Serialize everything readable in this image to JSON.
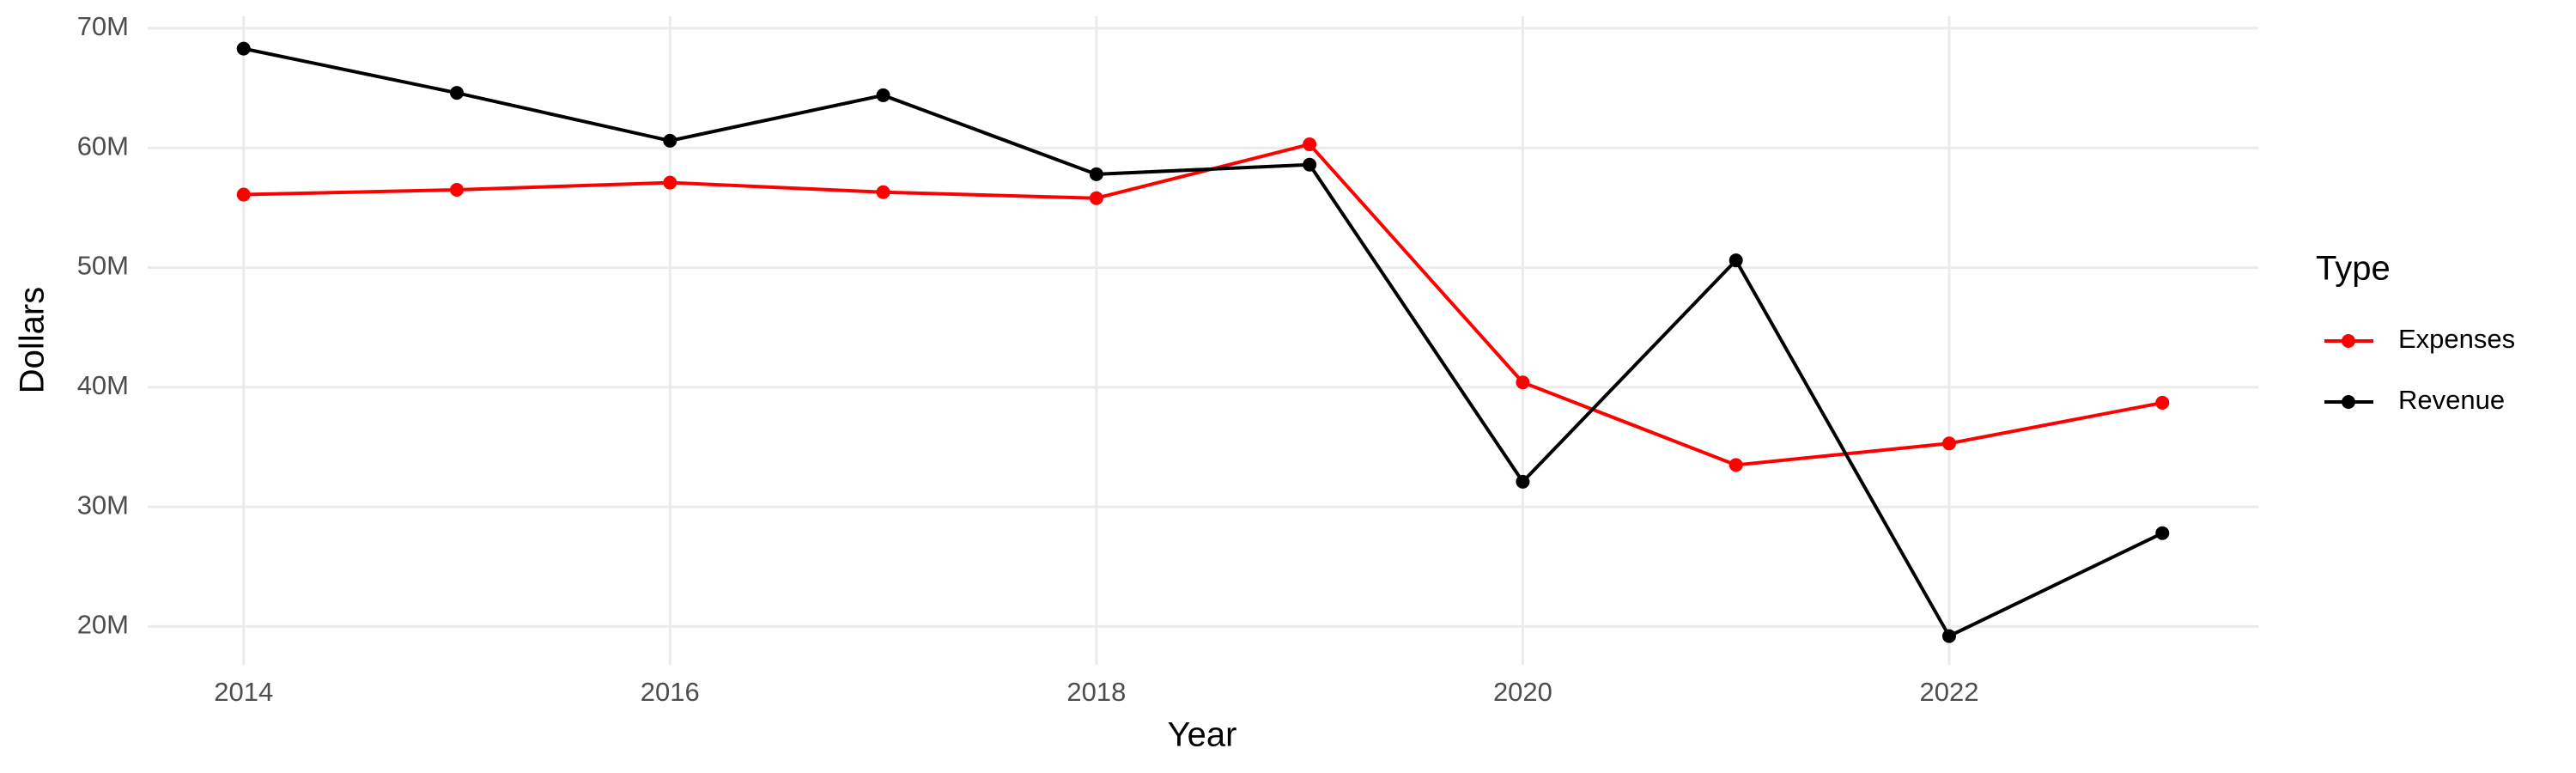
{
  "chart_data": {
    "type": "line",
    "x_label": "Year",
    "y_label": "Dollars",
    "legend_title": "Type",
    "legend_position": "right",
    "grid": true,
    "x": [
      2014,
      2015,
      2016,
      2017,
      2018,
      2019,
      2020,
      2021,
      2022,
      2023
    ],
    "series": [
      {
        "name": "Expenses",
        "color": "#ff0000",
        "values": [
          56100000,
          56500000,
          57100000,
          56300000,
          55800000,
          60300000,
          40400000,
          33500000,
          35300000,
          38700000
        ]
      },
      {
        "name": "Revenue",
        "color": "#000000",
        "values": [
          68300000,
          64600000,
          60600000,
          64400000,
          57800000,
          58600000,
          32100000,
          50600000,
          19200000,
          27800000
        ]
      }
    ],
    "xlim": [
      2013.55,
      2023.45
    ],
    "xticks": [
      2014,
      2016,
      2018,
      2020,
      2022
    ],
    "ylim": [
      16800000,
      71000000
    ],
    "yticks": [
      {
        "value": 20000000,
        "label": "20M"
      },
      {
        "value": 30000000,
        "label": "30M"
      },
      {
        "value": 40000000,
        "label": "40M"
      },
      {
        "value": 50000000,
        "label": "50M"
      },
      {
        "value": 60000000,
        "label": "60M"
      },
      {
        "value": 70000000,
        "label": "70M"
      }
    ]
  }
}
